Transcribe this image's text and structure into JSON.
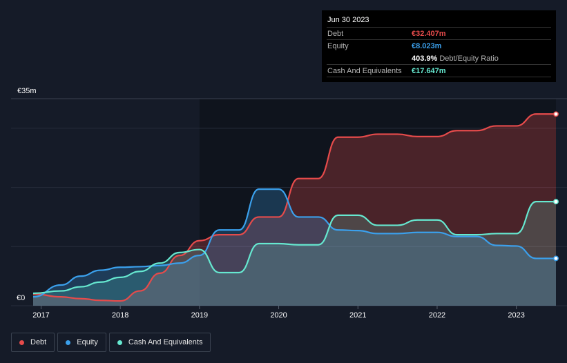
{
  "tooltip": {
    "date": "Jun 30 2023",
    "rows": [
      {
        "label": "Debt",
        "value": "€32.407m",
        "color": "#e64b4b",
        "extra": ""
      },
      {
        "label": "Equity",
        "value": "€8.023m",
        "color": "#3ba0ec",
        "extra": ""
      },
      {
        "label": "",
        "value": "403.9%",
        "color": "#ffffff",
        "extra": "Debt/Equity Ratio"
      },
      {
        "label": "Cash And Equivalents",
        "value": "€17.647m",
        "color": "#66e8d0",
        "extra": ""
      }
    ]
  },
  "legend": [
    {
      "label": "Debt",
      "color": "#e64b4b"
    },
    {
      "label": "Equity",
      "color": "#3ba0ec"
    },
    {
      "label": "Cash And Equivalents",
      "color": "#66e8d0"
    }
  ],
  "chart_data": {
    "type": "area",
    "title": "",
    "y_top_label": "€35m",
    "y_bottom_label": "€0",
    "ylim": [
      0,
      35
    ],
    "xlim": [
      2016.9,
      2023.5
    ],
    "x_ticks": [
      {
        "value": 2017,
        "label": "2017"
      },
      {
        "value": 2018,
        "label": "2018"
      },
      {
        "value": 2019,
        "label": "2019"
      },
      {
        "value": 2020,
        "label": "2020"
      },
      {
        "value": 2021,
        "label": "2021"
      },
      {
        "value": 2022,
        "label": "2022"
      },
      {
        "value": 2023,
        "label": "2023"
      }
    ],
    "highlight_start": 2019,
    "series": [
      {
        "name": "Debt",
        "color": "#e64b4b",
        "points": [
          [
            2016.9,
            2.0
          ],
          [
            2017.25,
            1.5
          ],
          [
            2017.5,
            1.2
          ],
          [
            2017.75,
            0.9
          ],
          [
            2018.0,
            0.8
          ],
          [
            2018.25,
            2.5
          ],
          [
            2018.5,
            5.5
          ],
          [
            2018.75,
            8.5
          ],
          [
            2019.0,
            11.0
          ],
          [
            2019.25,
            12.0
          ],
          [
            2019.5,
            12.0
          ],
          [
            2019.75,
            15.0
          ],
          [
            2020.0,
            15.0
          ],
          [
            2020.25,
            21.5
          ],
          [
            2020.5,
            21.5
          ],
          [
            2020.75,
            28.5
          ],
          [
            2021.0,
            28.5
          ],
          [
            2021.25,
            29.0
          ],
          [
            2021.5,
            29.0
          ],
          [
            2021.75,
            28.6
          ],
          [
            2022.0,
            28.6
          ],
          [
            2022.25,
            29.6
          ],
          [
            2022.5,
            29.6
          ],
          [
            2022.75,
            30.4
          ],
          [
            2023.0,
            30.4
          ],
          [
            2023.25,
            32.4
          ],
          [
            2023.5,
            32.4
          ]
        ]
      },
      {
        "name": "Equity",
        "color": "#3ba0ec",
        "points": [
          [
            2016.9,
            1.5
          ],
          [
            2017.25,
            3.5
          ],
          [
            2017.5,
            5.0
          ],
          [
            2017.75,
            6.0
          ],
          [
            2018.0,
            6.5
          ],
          [
            2018.25,
            6.6
          ],
          [
            2018.5,
            6.8
          ],
          [
            2018.75,
            7.2
          ],
          [
            2019.0,
            8.5
          ],
          [
            2019.25,
            12.8
          ],
          [
            2019.5,
            12.8
          ],
          [
            2019.75,
            19.7
          ],
          [
            2020.0,
            19.7
          ],
          [
            2020.25,
            15.0
          ],
          [
            2020.5,
            15.0
          ],
          [
            2020.75,
            12.8
          ],
          [
            2021.0,
            12.7
          ],
          [
            2021.25,
            12.2
          ],
          [
            2021.5,
            12.2
          ],
          [
            2021.75,
            12.4
          ],
          [
            2022.0,
            12.4
          ],
          [
            2022.25,
            11.7
          ],
          [
            2022.5,
            11.7
          ],
          [
            2022.75,
            10.2
          ],
          [
            2023.0,
            10.1
          ],
          [
            2023.25,
            8.0
          ],
          [
            2023.5,
            8.0
          ]
        ]
      },
      {
        "name": "Cash And Equivalents",
        "color": "#66e8d0",
        "points": [
          [
            2016.9,
            2.1
          ],
          [
            2017.25,
            2.5
          ],
          [
            2017.5,
            3.2
          ],
          [
            2017.75,
            4.0
          ],
          [
            2018.0,
            4.8
          ],
          [
            2018.25,
            5.8
          ],
          [
            2018.5,
            7.2
          ],
          [
            2018.75,
            9.0
          ],
          [
            2019.0,
            9.5
          ],
          [
            2019.25,
            5.6
          ],
          [
            2019.5,
            5.6
          ],
          [
            2019.75,
            10.5
          ],
          [
            2020.0,
            10.5
          ],
          [
            2020.25,
            10.3
          ],
          [
            2020.5,
            10.3
          ],
          [
            2020.75,
            15.3
          ],
          [
            2021.0,
            15.3
          ],
          [
            2021.25,
            13.6
          ],
          [
            2021.5,
            13.6
          ],
          [
            2021.75,
            14.5
          ],
          [
            2022.0,
            14.5
          ],
          [
            2022.25,
            12.0
          ],
          [
            2022.5,
            12.0
          ],
          [
            2022.75,
            12.2
          ],
          [
            2023.0,
            12.2
          ],
          [
            2023.25,
            17.6
          ],
          [
            2023.5,
            17.6
          ]
        ]
      }
    ]
  }
}
